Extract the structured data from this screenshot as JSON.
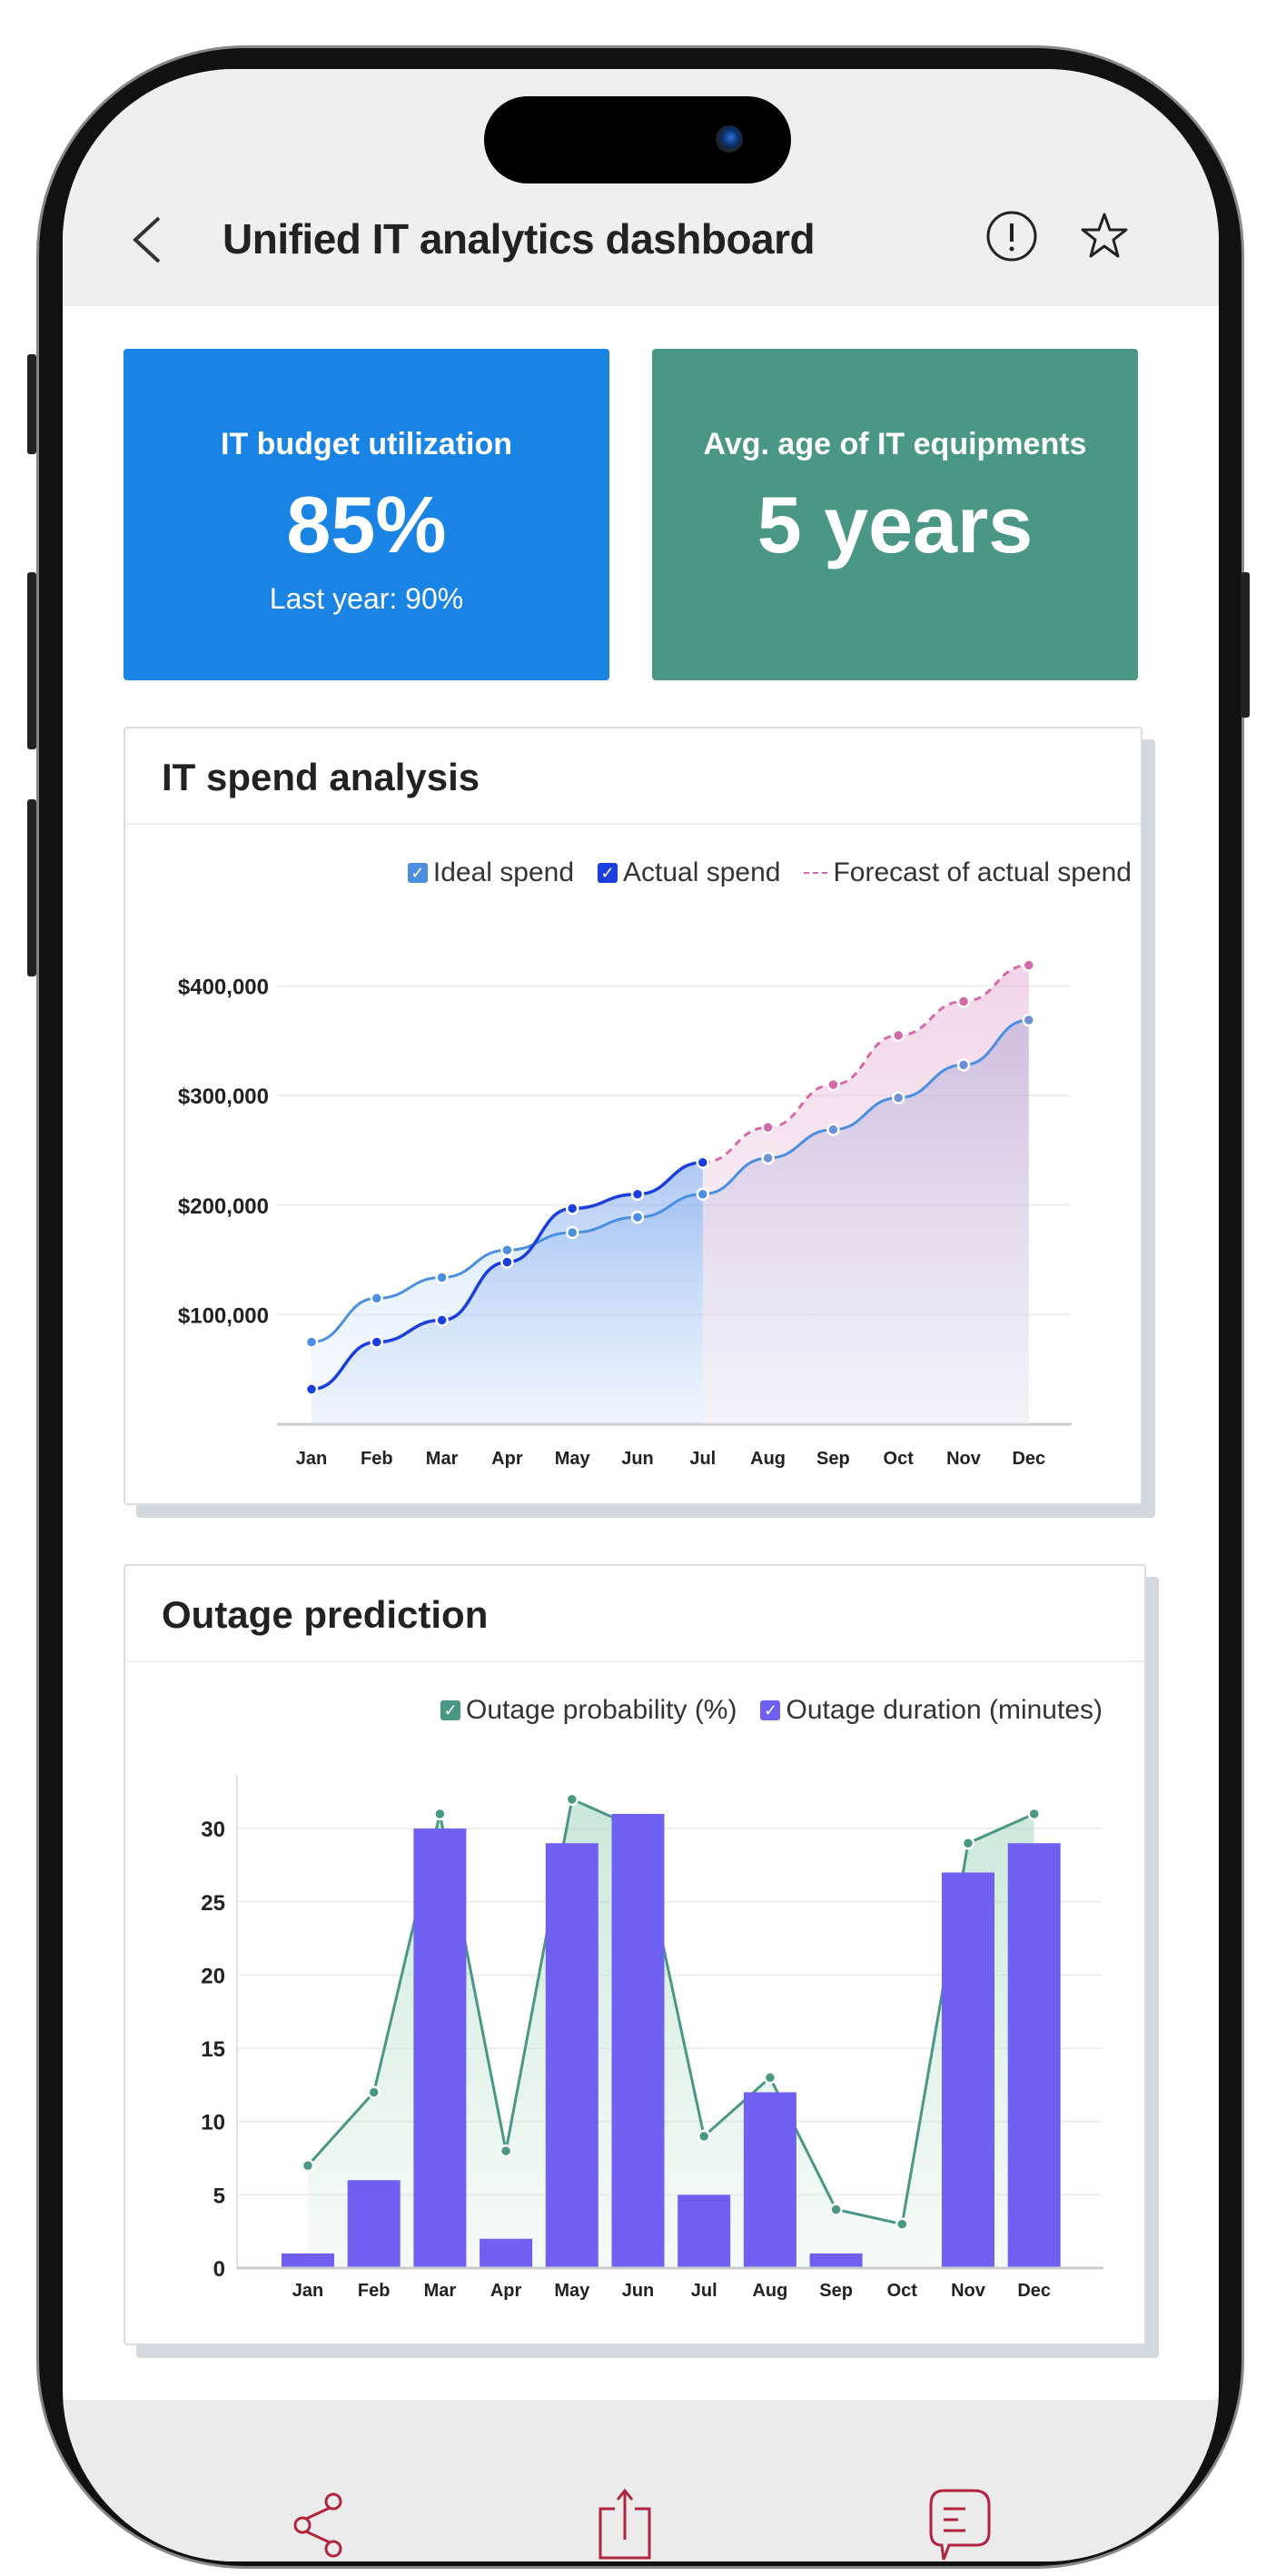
{
  "header": {
    "title": "Unified IT analytics dashboard",
    "back_icon": "chevron-left-icon",
    "info_icon": "info-circle-icon",
    "favorite_icon": "star-icon"
  },
  "kpis": [
    {
      "label": "IT budget utilization",
      "value": "85%",
      "sub": "Last year: 90%",
      "color": "#1a84e5"
    },
    {
      "label": "Avg. age of IT equipments",
      "value": "5 years",
      "color": "#4a9785"
    }
  ],
  "spend": {
    "title": "IT spend analysis",
    "legend": [
      "Ideal spend",
      "Actual spend",
      "Forecast of actual spend"
    ]
  },
  "outage": {
    "title": "Outage prediction",
    "legend": [
      "Outage probability (%)",
      "Outage duration (minutes)"
    ]
  },
  "chart_data": [
    {
      "type": "area",
      "title": "IT spend analysis",
      "categories": [
        "Jan",
        "Feb",
        "Mar",
        "Apr",
        "May",
        "Jun",
        "Jul",
        "Aug",
        "Sep",
        "Oct",
        "Nov",
        "Dec"
      ],
      "yticks": [
        "$100,000",
        "$200,000",
        "$300,000",
        "$400,000"
      ],
      "ylim": [
        0,
        430000
      ],
      "grid": true,
      "legend_position": "top-right",
      "series": [
        {
          "name": "Ideal spend",
          "color": "#4a8fe0",
          "values": [
            75000,
            115000,
            134000,
            159000,
            175000,
            189000,
            210000,
            243000,
            269000,
            298000,
            328000,
            369000
          ]
        },
        {
          "name": "Actual spend",
          "color": "#1b3fdc",
          "values": [
            32000,
            75000,
            95000,
            148000,
            197000,
            210000,
            239000,
            null,
            null,
            null,
            null,
            null
          ]
        },
        {
          "name": "Forecast of actual spend",
          "color": "#d46aa8",
          "style": "dashed",
          "values": [
            null,
            null,
            null,
            null,
            null,
            null,
            239000,
            271000,
            310000,
            355000,
            386000,
            419000
          ]
        }
      ]
    },
    {
      "type": "bar+area",
      "title": "Outage prediction",
      "categories": [
        "Jan",
        "Feb",
        "Mar",
        "Apr",
        "May",
        "Jun",
        "Jul",
        "Aug",
        "Sep",
        "Oct",
        "Nov",
        "Dec"
      ],
      "yticks": [
        "0",
        "5",
        "10",
        "15",
        "20",
        "25",
        "30"
      ],
      "ylim": [
        0,
        33
      ],
      "grid": true,
      "legend_position": "top-right",
      "series": [
        {
          "name": "Outage probability (%)",
          "type": "area",
          "color": "#4a9785",
          "values": [
            7,
            12,
            31,
            8,
            32,
            30,
            9,
            13,
            4,
            3,
            29,
            31
          ]
        },
        {
          "name": "Outage duration (minutes)",
          "type": "bar",
          "color": "#7060f2",
          "values": [
            1,
            6,
            30,
            2,
            29,
            31,
            5,
            12,
            1,
            0,
            27,
            29
          ]
        }
      ]
    }
  ],
  "bottom_bar": {
    "icons": [
      "share-icon",
      "export-icon",
      "comment-icon"
    ],
    "accent": "#b0243f"
  }
}
